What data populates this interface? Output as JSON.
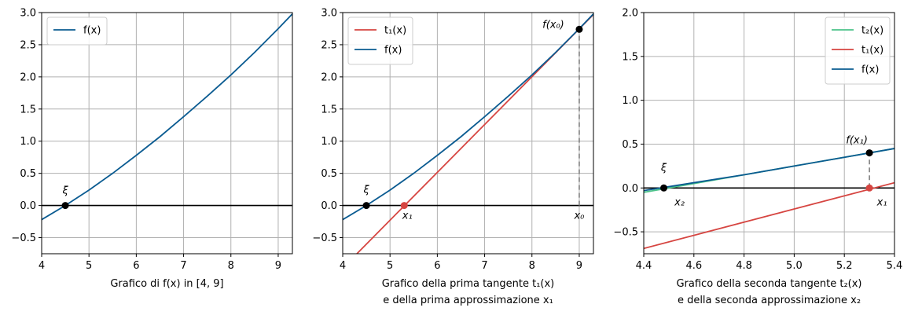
{
  "chart_data": [
    {
      "type": "line",
      "xlim": [
        4,
        9.3
      ],
      "ylim": [
        -0.75,
        3.0
      ],
      "xticks": [
        "4",
        "5",
        "6",
        "7",
        "8",
        "9"
      ],
      "yticks": [
        "−0.5",
        "0.0",
        "0.5",
        "1.0",
        "1.5",
        "2.0",
        "2.5",
        "3.0"
      ],
      "grid": true,
      "legend": "top-left",
      "caption": "Grafico di f(x) in [4, 9]",
      "series": [
        {
          "name": "f(x)",
          "color": "#0a5b91",
          "x": [
            4.0,
            4.5,
            5.0,
            5.5,
            6.0,
            6.5,
            7.0,
            7.5,
            8.0,
            8.5,
            9.0,
            9.3
          ],
          "y": [
            -0.22,
            0.0,
            0.24,
            0.5,
            0.78,
            1.07,
            1.38,
            1.7,
            2.03,
            2.38,
            2.75,
            2.98
          ]
        }
      ],
      "points": [
        {
          "x": 4.5,
          "y": 0.0,
          "color": "#000000",
          "label": "ξ"
        }
      ]
    },
    {
      "type": "line",
      "xlim": [
        4,
        9.3
      ],
      "ylim": [
        -0.75,
        3.0
      ],
      "xticks": [
        "4",
        "5",
        "6",
        "7",
        "8",
        "9"
      ],
      "yticks": [
        "−0.5",
        "0.0",
        "0.5",
        "1.0",
        "1.5",
        "2.0",
        "2.5",
        "3.0"
      ],
      "grid": true,
      "legend": "top-left",
      "caption": [
        "Grafico della prima tangente t₁(x)",
        "e della prima approssimazione x₁"
      ],
      "series": [
        {
          "name": "t₁(x)",
          "color": "#d64541",
          "x": [
            4.3,
            9.3
          ],
          "y": [
            -0.75,
            2.97
          ]
        },
        {
          "name": "f(x)",
          "color": "#0a5b91",
          "x": [
            4.0,
            4.5,
            5.0,
            5.5,
            6.0,
            6.5,
            7.0,
            7.5,
            8.0,
            8.5,
            9.0,
            9.3
          ],
          "y": [
            -0.22,
            0.0,
            0.24,
            0.5,
            0.78,
            1.07,
            1.38,
            1.7,
            2.03,
            2.38,
            2.75,
            2.98
          ]
        }
      ],
      "points": [
        {
          "x": 4.5,
          "y": 0.0,
          "color": "#000000",
          "label": "ξ"
        },
        {
          "x": 5.3,
          "y": 0.0,
          "color": "#d64541",
          "label": "x₁"
        },
        {
          "x": 9.0,
          "y": 2.74,
          "color": "#000000",
          "label": "f(x₀)"
        }
      ],
      "vline": {
        "x": 9.0,
        "y0": 0.0,
        "y1": 2.74,
        "label": "x₀"
      }
    },
    {
      "type": "line",
      "xlim": [
        4.4,
        5.4
      ],
      "ylim": [
        -0.75,
        2.0
      ],
      "xticks": [
        "4.4",
        "4.6",
        "4.8",
        "5.0",
        "5.2",
        "5.4"
      ],
      "yticks": [
        "−0.5",
        "0.0",
        "0.5",
        "1.0",
        "1.5",
        "2.0"
      ],
      "grid": true,
      "legend": "top-right",
      "caption": [
        "Grafico della seconda tangente t₂(x)",
        "e della seconda approssimazione x₂"
      ],
      "series": [
        {
          "name": "t₂(x)",
          "color": "#4cc38a",
          "x": [
            4.4,
            5.4
          ],
          "y": [
            -0.05,
            0.45
          ]
        },
        {
          "name": "t₁(x)",
          "color": "#d64541",
          "x": [
            4.4,
            5.4
          ],
          "y": [
            -0.69,
            0.06
          ]
        },
        {
          "name": "f(x)",
          "color": "#0a5b91",
          "x": [
            4.4,
            4.6,
            4.8,
            5.0,
            5.2,
            5.4
          ],
          "y": [
            -0.03,
            0.06,
            0.15,
            0.25,
            0.35,
            0.45
          ]
        }
      ],
      "points": [
        {
          "x": 4.48,
          "y": 0.0,
          "color": "#000000",
          "label": "ξ"
        },
        {
          "x": 4.48,
          "y": 0.0,
          "color": "#000000",
          "label": "x₂"
        },
        {
          "x": 5.3,
          "y": 0.0,
          "color": "#d64541",
          "label": "x₁"
        },
        {
          "x": 5.3,
          "y": 0.4,
          "color": "#000000",
          "label": "f(x₁)"
        }
      ],
      "vline": {
        "x": 5.3,
        "y0": 0.0,
        "y1": 0.4
      }
    }
  ]
}
